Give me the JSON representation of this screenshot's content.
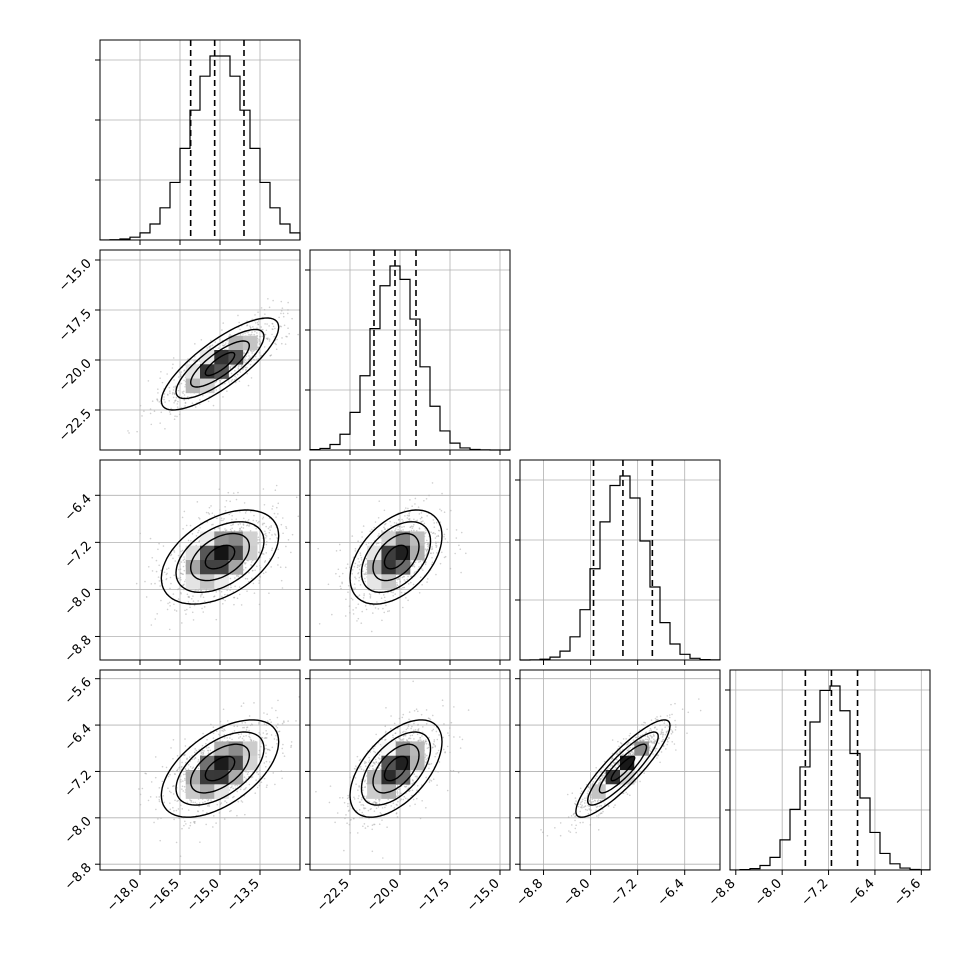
{
  "chart_data": {
    "type": "corner",
    "parameters": 4,
    "grid": true,
    "colors": {
      "hist": "#000000",
      "quantile": "#000000",
      "grid": "#b0b0b0",
      "points": "#aaaaaa",
      "density": "#000000"
    },
    "ranges": [
      [
        -19.5,
        -12.0
      ],
      [
        -24.5,
        -14.5
      ],
      [
        -9.2,
        -5.8
      ],
      [
        -8.9,
        -5.45
      ]
    ],
    "ticks": [
      [
        "−18.0",
        "−16.5",
        "−15.0",
        "−13.5"
      ],
      [
        "−22.5",
        "−20.0",
        "−17.5",
        "−15.0"
      ],
      [
        "−8.8",
        "−8.0",
        "−7.2",
        "−6.4"
      ],
      [
        "−8.8",
        "−8.0",
        "−7.2",
        "−6.4",
        "−5.6"
      ]
    ],
    "tick_values": [
      [
        -18.0,
        -16.5,
        -15.0,
        -13.5
      ],
      [
        -22.5,
        -20.0,
        -17.5,
        -15.0
      ],
      [
        -8.8,
        -8.0,
        -7.2,
        -6.4
      ],
      [
        -8.8,
        -8.0,
        -7.2,
        -6.4,
        -5.6
      ]
    ],
    "means": [
      -15.0,
      -20.2,
      -7.45,
      -7.15
    ],
    "stds": [
      1.1,
      1.15,
      0.4,
      0.42
    ],
    "quantiles": [
      [
        -16.1,
        -15.2,
        -14.1
      ],
      [
        -21.3,
        -20.25,
        -19.2
      ],
      [
        -7.95,
        -7.45,
        -6.95
      ],
      [
        -7.6,
        -7.15,
        -6.7
      ]
    ],
    "correlations": {
      "1-0": 0.8,
      "2-0": 0.45,
      "2-1": 0.45,
      "3-0": 0.55,
      "3-1": 0.55,
      "3-2": 0.88
    }
  }
}
